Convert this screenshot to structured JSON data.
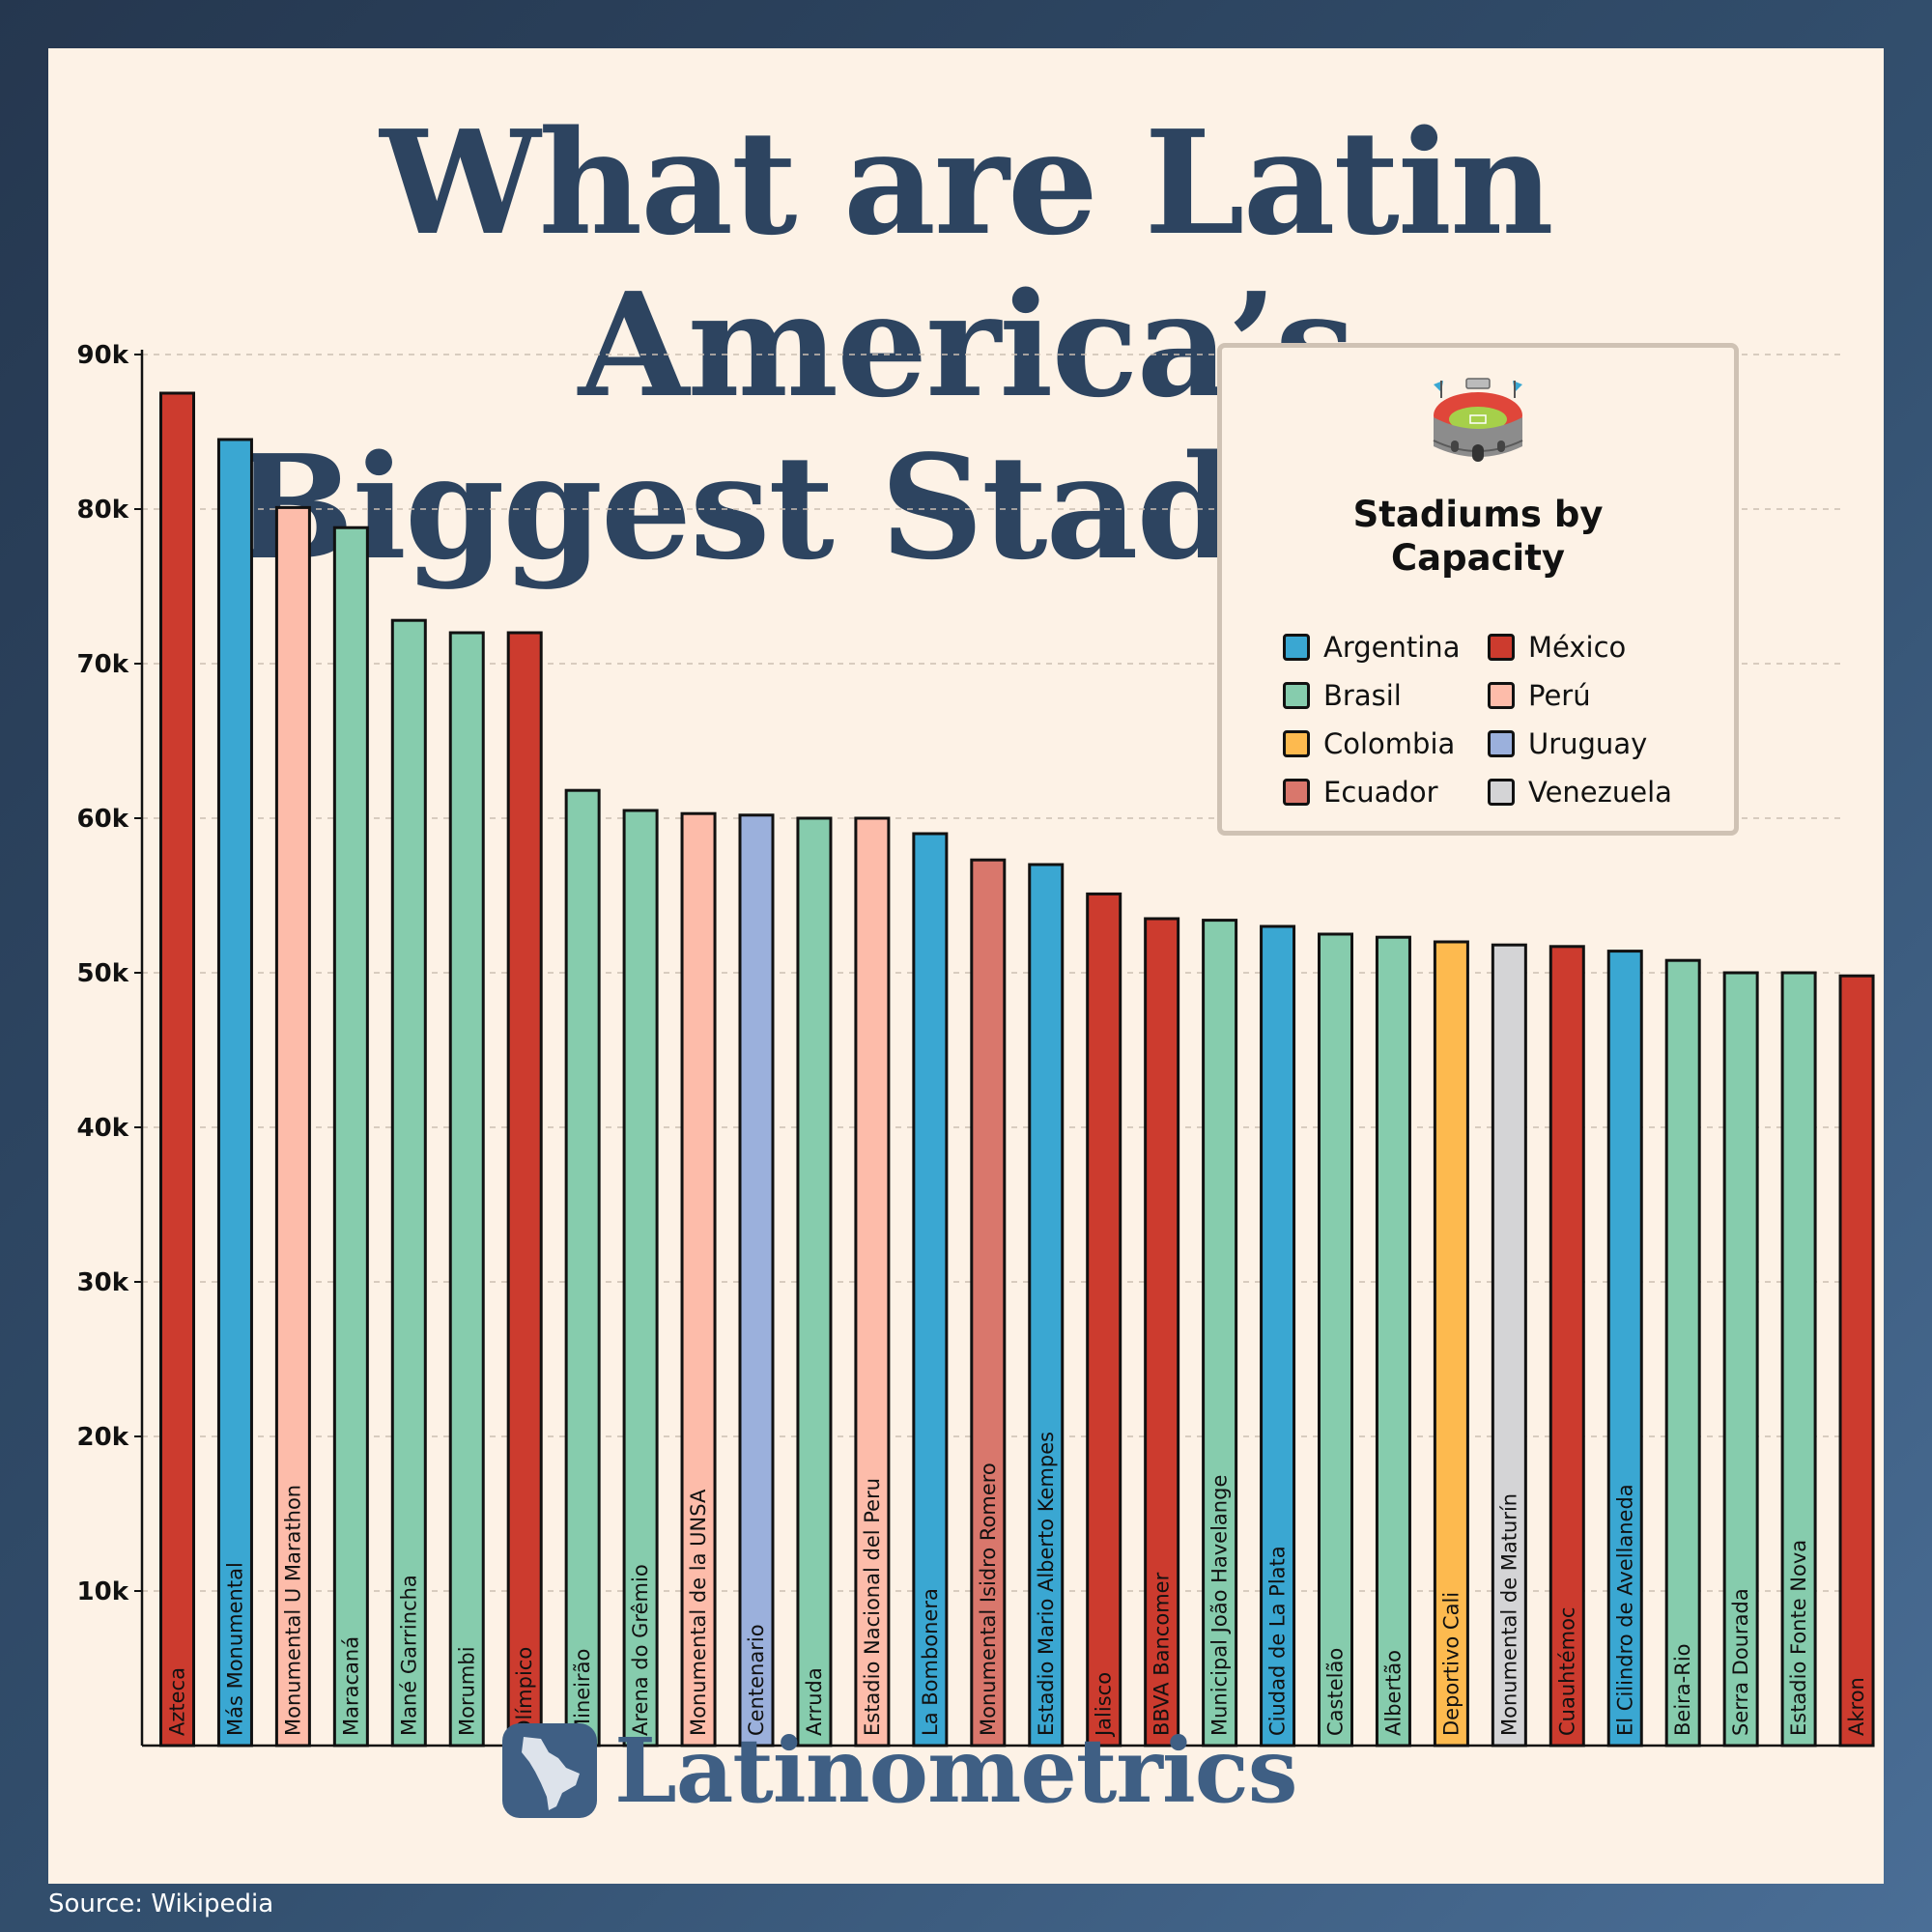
{
  "title_line1": "What are Latin America’s",
  "title_line2": "Biggest Stadiums?",
  "brand": "Latinometrics",
  "source": "Source: Wikipedia",
  "colors": {
    "Argentina": "#3aa7d2",
    "México": "#cc3b2e",
    "Brasil": "#86ccad",
    "Perú": "#fdbcaa",
    "Colombia": "#fdba4f",
    "Uruguay": "#9bb0dc",
    "Ecuador": "#d9776c",
    "Venezuela": "#d4d4d6"
  },
  "legend": {
    "icon": "stadium-icon",
    "title_line1": "Stadiums by",
    "title_line2": "Capacity",
    "items": [
      "Argentina",
      "México",
      "Brasil",
      "Perú",
      "Colombia",
      "Uruguay",
      "Ecuador",
      "Venezuela"
    ]
  },
  "chart_data": {
    "type": "bar",
    "orientation": "vertical",
    "ylim": [
      0,
      90000
    ],
    "yticks": [
      10000,
      20000,
      30000,
      40000,
      50000,
      60000,
      70000,
      80000,
      90000
    ],
    "ytick_labels": [
      "10k",
      "20k",
      "30k",
      "40k",
      "50k",
      "60k",
      "70k",
      "80k",
      "90k"
    ],
    "grid": "horizontal dashed",
    "legend_position": "top-right",
    "categories": [
      "Azteca",
      "Más Monumental",
      "Monumental U Marathon",
      "Maracaná",
      "Mané Garrincha",
      "Morumbi",
      "Olímpico",
      "Mineirão",
      "Arena do Grêmio",
      "Monumental de la UNSA",
      "Centenario",
      "Arruda",
      "Estadio Nacional del Peru",
      "La Bombonera",
      "Monumental Isidro Romero",
      "Estadio Mario Alberto Kempes",
      "Jalisco",
      "BBVA Bancomer",
      "Municipal João Havelange",
      "Ciudad de La Plata",
      "Castelão",
      "Albertão",
      "Deportivo Cali",
      "Monumental de Maturín",
      "Cuauhtémoc",
      "El Cilindro de Avellaneda",
      "Beira-Rio",
      "Serra Dourada",
      "Estadio Fonte Nova",
      "Akron"
    ],
    "values": [
      87500,
      84500,
      80100,
      78800,
      72800,
      72000,
      72000,
      61800,
      60500,
      60300,
      60200,
      60000,
      60000,
      59000,
      57300,
      57000,
      55100,
      53500,
      53400,
      53000,
      52500,
      52300,
      52000,
      51800,
      51700,
      51400,
      50800,
      50000,
      50000,
      49800
    ],
    "countries": [
      "México",
      "Argentina",
      "Perú",
      "Brasil",
      "Brasil",
      "Brasil",
      "México",
      "Brasil",
      "Brasil",
      "Perú",
      "Uruguay",
      "Brasil",
      "Perú",
      "Argentina",
      "Ecuador",
      "Argentina",
      "México",
      "México",
      "Brasil",
      "Argentina",
      "Brasil",
      "Brasil",
      "Colombia",
      "Venezuela",
      "México",
      "Argentina",
      "Brasil",
      "Brasil",
      "Brasil",
      "México"
    ]
  }
}
